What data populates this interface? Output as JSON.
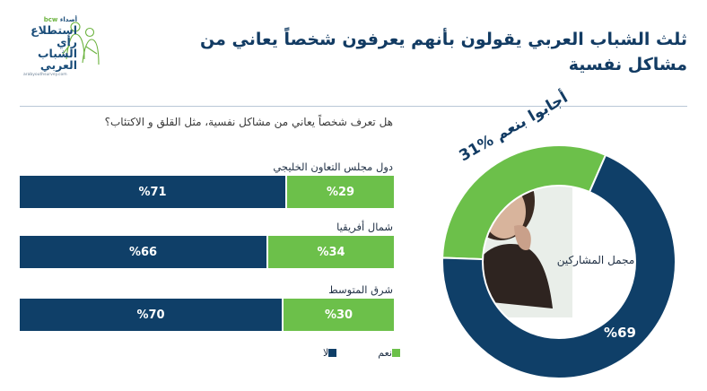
{
  "title": "ثلث الشباب العربي يقولون بأنهم يعرفون شخصاً يعاني من مشاكل نفسية",
  "logo": {
    "sponsor": "bcw",
    "sponsor_prefix": "أصداء",
    "name_line1": "استطلاع",
    "name_line2": "رأي الشباب",
    "name_line3": "العربي",
    "url": "arabyouthsurvey.com"
  },
  "question": "هل تعرف شخصاً يعاني من مشاكل نفسية، مثل القلق و الاكتئاب؟",
  "legend": {
    "yes": "نعم",
    "no": "لا"
  },
  "colors": {
    "yes": "#6cc04a",
    "no": "#0f3f68",
    "title": "#123b63"
  },
  "chart_data": [
    {
      "type": "bar",
      "orientation": "horizontal-stacked-100",
      "categories": [
        "دول مجلس التعاون الخليجي",
        "شمال أفريقيا",
        "شرق المتوسط"
      ],
      "series": [
        {
          "name": "نعم",
          "values": [
            29,
            34,
            30
          ],
          "labels": [
            "%29",
            "%34",
            "%30"
          ]
        },
        {
          "name": "لا",
          "values": [
            71,
            66,
            70
          ],
          "labels": [
            "%71",
            "%66",
            "%70"
          ]
        }
      ]
    },
    {
      "type": "pie",
      "variant": "donut",
      "center_label": "مجمل المشاركين",
      "headline": "31% أجابوا بنعم",
      "slices": [
        {
          "name": "نعم",
          "value": 31
        },
        {
          "name": "لا",
          "value": 69,
          "label": "%69"
        }
      ]
    }
  ]
}
